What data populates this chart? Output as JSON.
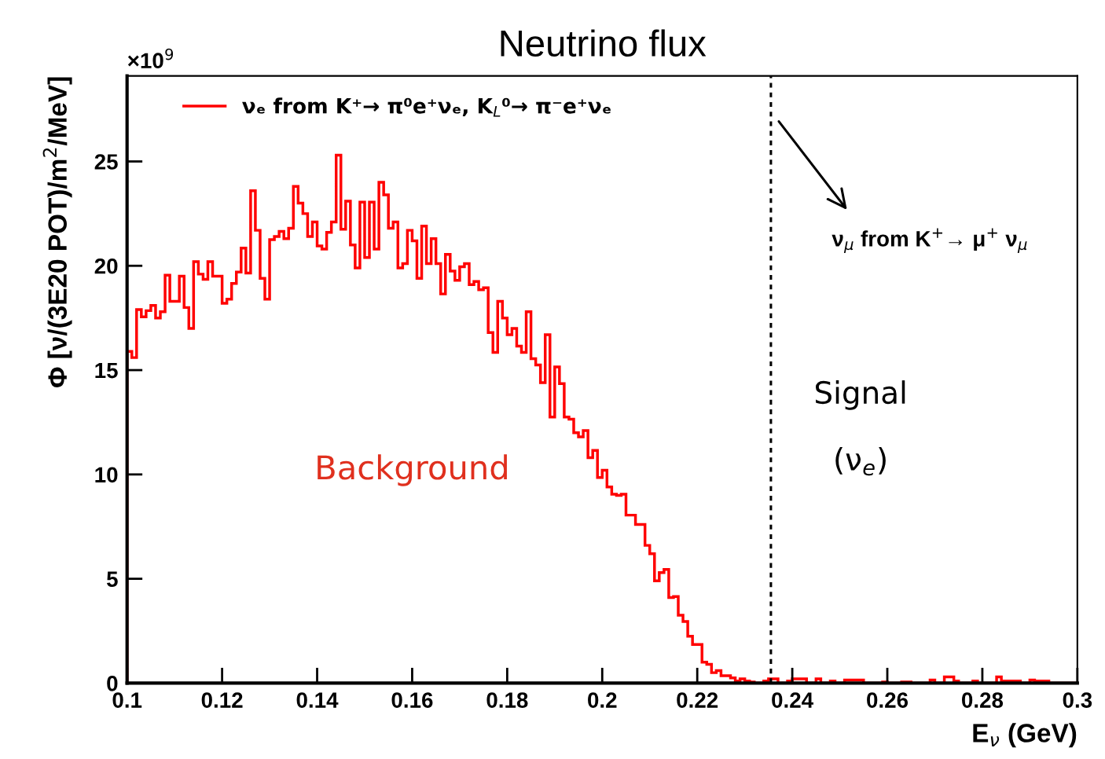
{
  "chart_data": {
    "type": "histogram",
    "title": "Neutrino flux",
    "xlabel": "E$_{ν}$ (GeV)",
    "ylabel": "Φ [ν/(3E20 POT)/m$^{2}$/MeV]",
    "annotations": [
      "×10$^{9}$",
      "Background",
      "Signal",
      "(ν$_{e}$)",
      "ν$_{μ}$ from K$^{+}$→ μ$^{+}$ ν$_{μ}$"
    ],
    "bins": [
      0.1,
      0.101,
      0.102,
      0.103,
      0.104,
      0.105,
      0.106,
      0.107,
      0.108,
      0.109,
      0.11,
      0.111,
      0.112,
      0.113,
      0.114,
      0.115,
      0.116,
      0.117,
      0.118,
      0.119,
      0.12,
      0.121,
      0.122,
      0.123,
      0.124,
      0.125,
      0.126,
      0.127,
      0.128,
      0.129,
      0.13,
      0.131,
      0.132,
      0.133,
      0.134,
      0.135,
      0.136,
      0.137,
      0.138,
      0.139,
      0.14,
      0.141,
      0.142,
      0.143,
      0.144,
      0.145,
      0.146,
      0.147,
      0.148,
      0.149,
      0.15,
      0.151,
      0.152,
      0.153,
      0.154,
      0.155,
      0.156,
      0.157,
      0.158,
      0.159,
      0.16,
      0.161,
      0.162,
      0.163,
      0.164,
      0.165,
      0.166,
      0.167,
      0.168,
      0.169,
      0.17,
      0.171,
      0.172,
      0.173,
      0.174,
      0.175,
      0.176,
      0.177,
      0.178,
      0.179,
      0.18,
      0.181,
      0.182,
      0.183,
      0.184,
      0.185,
      0.186,
      0.187,
      0.188,
      0.189,
      0.19,
      0.191,
      0.192,
      0.193,
      0.194,
      0.195,
      0.196,
      0.197,
      0.198,
      0.199,
      0.2,
      0.201,
      0.202,
      0.203,
      0.204,
      0.205,
      0.206,
      0.207,
      0.208,
      0.209,
      0.21,
      0.211,
      0.212,
      0.213,
      0.214,
      0.215,
      0.216,
      0.217,
      0.218,
      0.219,
      0.22,
      0.221,
      0.222,
      0.223,
      0.224,
      0.225,
      0.226,
      0.227,
      0.228,
      0.229,
      0.23,
      0.231,
      0.232,
      0.233,
      0.234,
      0.235,
      0.236,
      0.237,
      0.238,
      0.239,
      0.24,
      0.241,
      0.242,
      0.243,
      0.244,
      0.245,
      0.246,
      0.247,
      0.248,
      0.249,
      0.25,
      0.251,
      0.252,
      0.253,
      0.254,
      0.255,
      0.256,
      0.257,
      0.258,
      0.259,
      0.26,
      0.261,
      0.262,
      0.263,
      0.264,
      0.265,
      0.266,
      0.267,
      0.268,
      0.269,
      0.27,
      0.271,
      0.272,
      0.273,
      0.274,
      0.275,
      0.276,
      0.277,
      0.278,
      0.279,
      0.28,
      0.281,
      0.282,
      0.283,
      0.284,
      0.285,
      0.286,
      0.287,
      0.288,
      0.289,
      0.29,
      0.291,
      0.292,
      0.293,
      0.294,
      0.295,
      0.296,
      0.297,
      0.298,
      0.299,
      0.3
    ],
    "series": [
      {
        "name": "νₑ from K⁺→ π⁰e⁺νₑ, K$_{L}$⁰→ π⁻e⁺νₑ",
        "color": "#ff0000",
        "values": [
          15.9,
          15.6,
          17.9,
          17.55,
          17.85,
          18.1,
          17.5,
          17.8,
          19.55,
          18.3,
          18.3,
          19.5,
          18.0,
          17.0,
          20.2,
          19.6,
          19.35,
          20.2,
          19.5,
          19.5,
          18.2,
          18.4,
          19.15,
          19.7,
          20.85,
          19.65,
          23.6,
          21.7,
          19.4,
          18.4,
          21.25,
          21.4,
          21.65,
          21.3,
          21.8,
          23.8,
          23.0,
          22.5,
          21.4,
          22.1,
          20.95,
          20.8,
          21.6,
          22.1,
          25.3,
          21.75,
          23.1,
          21.0,
          19.9,
          23.05,
          20.4,
          23.05,
          20.8,
          24.0,
          23.4,
          21.8,
          22.1,
          19.9,
          20.1,
          21.7,
          21.2,
          19.4,
          21.9,
          20.1,
          21.3,
          20.1,
          18.65,
          20.55,
          19.75,
          19.3,
          19.95,
          20.1,
          19.1,
          19.25,
          18.85,
          18.95,
          16.8,
          15.85,
          18.3,
          17.5,
          16.7,
          17.0,
          16.15,
          15.85,
          17.8,
          15.55,
          15.25,
          14.4,
          16.7,
          12.75,
          15.15,
          14.35,
          12.75,
          12.65,
          12.0,
          11.8,
          12.1,
          10.8,
          11.15,
          9.85,
          10.2,
          9.4,
          9.05,
          9.0,
          9.05,
          8.05,
          8.05,
          7.6,
          7.6,
          6.6,
          6.2,
          4.9,
          5.3,
          5.45,
          4.1,
          4.15,
          3.25,
          2.95,
          2.25,
          1.85,
          1.85,
          1.0,
          0.9,
          0.5,
          0.6,
          0.35,
          0.35,
          0.25,
          0.1,
          0.2,
          0.1,
          0.05,
          0,
          0,
          0.1,
          0.2,
          0.2,
          0,
          0,
          0.1,
          0.2,
          0.2,
          0.2,
          0,
          0,
          0.2,
          0,
          0,
          0.1,
          0,
          0,
          0.15,
          0.15,
          0.15,
          0.15,
          0,
          0,
          0,
          0,
          0.05,
          0,
          0,
          0,
          0.05,
          0.05,
          0,
          0,
          0,
          0,
          0.15,
          0,
          0,
          0.3,
          0.3,
          0.1,
          0,
          0,
          0,
          0.1,
          0,
          0,
          0,
          0,
          0.3,
          0.1,
          0.1,
          0.1,
          0.1,
          0,
          0,
          0.15,
          0.1,
          0.1,
          0.1,
          0,
          0,
          0,
          0,
          0,
          0
        ]
      }
    ],
    "xlim": [
      0.1,
      0.3
    ],
    "ylim": [
      0,
      29.1
    ],
    "xticks": [
      0.1,
      0.12,
      0.14,
      0.16,
      0.18,
      0.2,
      0.22,
      0.24,
      0.26,
      0.28,
      0.3
    ],
    "yticks": [
      0,
      5,
      10,
      15,
      20,
      25
    ],
    "ref_lines": [
      {
        "axis": "x",
        "value": 0.2355,
        "line_style": "dotted",
        "color": "#000000"
      }
    ],
    "legend": "top left"
  }
}
